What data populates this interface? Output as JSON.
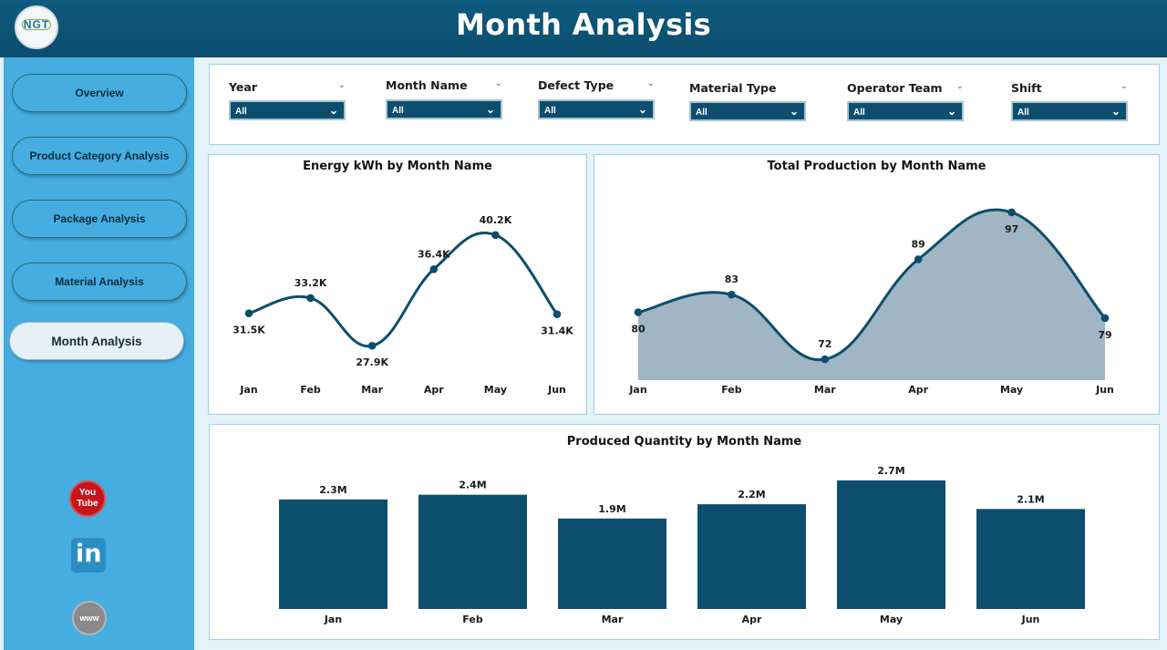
{
  "header": {
    "title": "Month Analysis",
    "logo_text": "NGT"
  },
  "sidebar": {
    "items": [
      {
        "label": "Overview"
      },
      {
        "label": "Product Category Analysis"
      },
      {
        "label": "Package Analysis"
      },
      {
        "label": "Material Analysis"
      },
      {
        "label": "Month Analysis"
      }
    ],
    "social": {
      "youtube_top": "You",
      "youtube_bottom": "Tube",
      "linkedin": "in",
      "web": "www"
    }
  },
  "filters": [
    {
      "label": "Year",
      "value": "All"
    },
    {
      "label": "Month Name",
      "value": "All"
    },
    {
      "label": "Defect Type",
      "value": "All"
    },
    {
      "label": "Material Type",
      "value": "All"
    },
    {
      "label": "Operator Team",
      "value": "All"
    },
    {
      "label": "Shift",
      "value": "All"
    }
  ],
  "colors": {
    "primary": "#0d4e6e",
    "area_fill": "#a1b6c4",
    "sidebar": "#45ade0",
    "header": "#0d4e6e"
  },
  "chart_data": [
    {
      "type": "line",
      "title": "Energy kWh by Month Name",
      "categories": [
        "Jan",
        "Feb",
        "Mar",
        "Apr",
        "May",
        "Jun"
      ],
      "values": [
        31500,
        33200,
        27900,
        36400,
        40200,
        31400
      ],
      "labels": [
        "31.5K",
        "33.2K",
        "27.9K",
        "36.4K",
        "40.2K",
        "31.4K"
      ],
      "ylim": [
        26000,
        42000
      ],
      "label_position": [
        "below",
        "above",
        "below",
        "above",
        "above",
        "below"
      ]
    },
    {
      "type": "area",
      "title": "Total Production by Month Name",
      "categories": [
        "Jan",
        "Feb",
        "Mar",
        "Apr",
        "May",
        "Jun"
      ],
      "values": [
        80,
        83,
        72,
        89,
        97,
        79
      ],
      "labels": [
        "80",
        "83",
        "72",
        "89",
        "97",
        "79"
      ],
      "ylim": [
        70,
        99
      ],
      "label_position": [
        "below",
        "above",
        "above",
        "above",
        "below",
        "below"
      ]
    },
    {
      "type": "bar",
      "title": "Produced Quantity by Month Name",
      "categories": [
        "Jan",
        "Feb",
        "Mar",
        "Apr",
        "May",
        "Jun"
      ],
      "values": [
        2300000,
        2400000,
        1900000,
        2200000,
        2700000,
        2100000
      ],
      "labels": [
        "2.3M",
        "2.4M",
        "1.9M",
        "2.2M",
        "2.7M",
        "2.1M"
      ],
      "ylim": [
        0,
        2700000
      ]
    }
  ]
}
